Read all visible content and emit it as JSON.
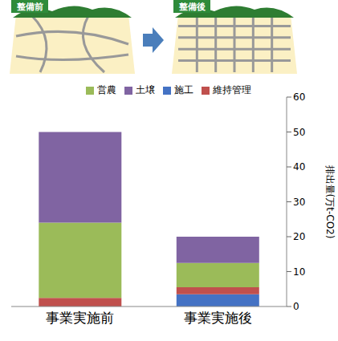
{
  "chart_data": {
    "type": "bar",
    "annotations": [
      "整備前",
      "整備後"
    ],
    "categories": [
      "事業実施前",
      "事業実施後"
    ],
    "series": [
      {
        "name": "施工",
        "color": "#4472c4",
        "values": [
          0,
          3.5
        ]
      },
      {
        "name": "維持管理",
        "color": "#c0504d",
        "values": [
          2.5,
          2
        ]
      },
      {
        "name": "営農",
        "color": "#9bbb59",
        "values": [
          21.5,
          7
        ]
      },
      {
        "name": "土壌",
        "color": "#8064a2",
        "values": [
          26,
          7.5
        ]
      }
    ],
    "y_label": "排出量(万t-CO2)",
    "ylim": [
      0,
      60
    ],
    "yticks": [
      0,
      10,
      20,
      30,
      40,
      50,
      60
    ],
    "stacked": true,
    "legend": "top",
    "grid": false
  }
}
